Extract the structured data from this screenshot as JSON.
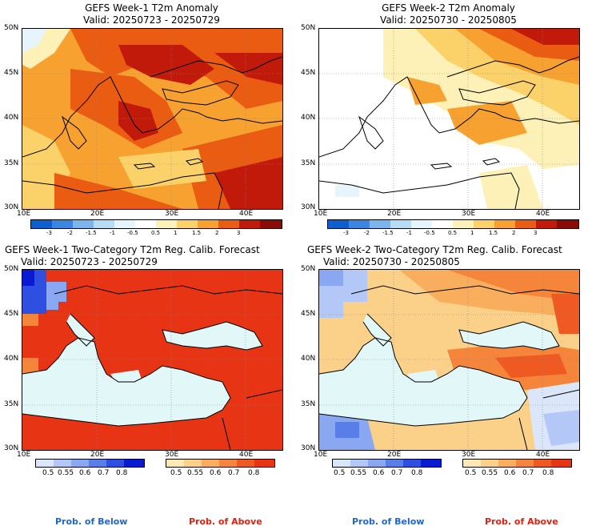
{
  "panels": [
    {
      "title": "GEFS Week-1 T2m Anomaly",
      "valid": "Valid: 20250723 - 20250729"
    },
    {
      "title": "GEFS Week-2 T2m Anomaly",
      "valid": "Valid: 20250730 - 20250805"
    },
    {
      "title": "GEFS Week-1 Two-Category T2m Reg. Calib. Forecast",
      "valid": "Valid: 20250723 - 20250729"
    },
    {
      "title": "GEFS Week-2 Two-Category T2m Reg. Calib. Forecast",
      "valid": "Valid: 20250730 - 20250805"
    }
  ],
  "lat_labels": [
    "50N",
    "45N",
    "40N",
    "35N",
    "30N"
  ],
  "lon_labels": [
    "10E",
    "20E",
    "30E",
    "40E"
  ],
  "anomaly_ticks": [
    "-3",
    "-2",
    "-1.5",
    "-1",
    "-0.5",
    "0.5",
    "1",
    "1.5",
    "2",
    "3"
  ],
  "anomaly_colors": [
    "#0d5fd0",
    "#3a86e0",
    "#7cb4ee",
    "#b8dcf6",
    "#e6f4fb",
    "#ffffff",
    "#fdf1b8",
    "#fbd26a",
    "#f7a130",
    "#e95c12",
    "#c21a0a",
    "#8a0a06"
  ],
  "prob_ticks": [
    "0.5",
    "0.55",
    "0.6",
    "0.7",
    "0.8"
  ],
  "below_colors": [
    "#dbe6fb",
    "#b4c8f7",
    "#8aa8f2",
    "#5a7ee8",
    "#2f4fe0",
    "#0a1ad0"
  ],
  "above_colors": [
    "#fde9b5",
    "#fbd089",
    "#f8ae5c",
    "#f4853a",
    "#ef5a22",
    "#e63415"
  ],
  "legend": {
    "below": "Prob. of Below",
    "above": "Prob. of Above"
  },
  "colors": {
    "sea": "#e1f7f8",
    "land_text": "#000000"
  }
}
